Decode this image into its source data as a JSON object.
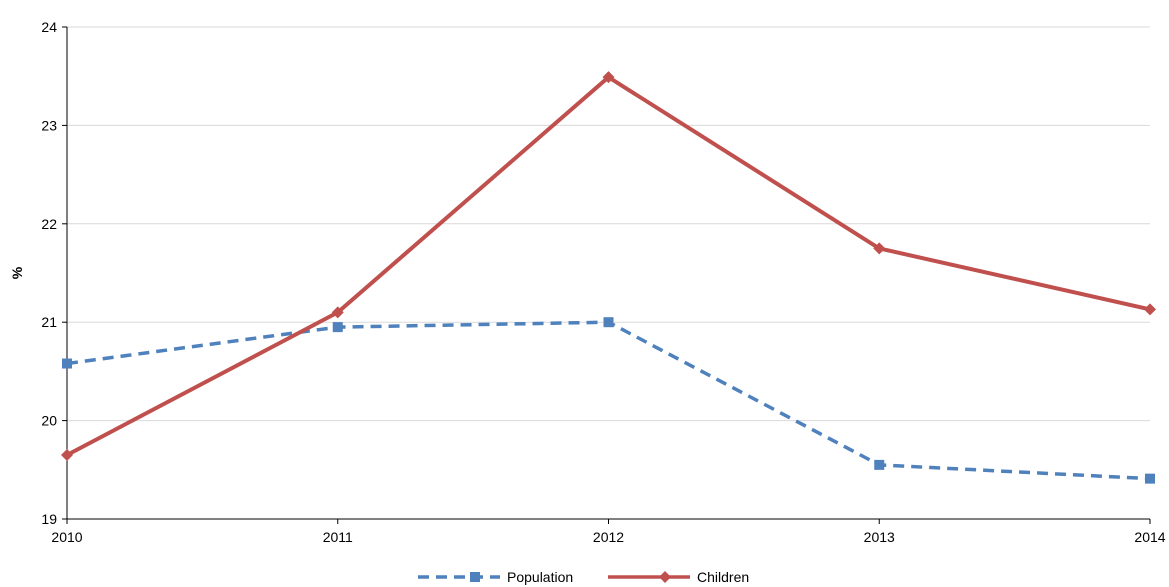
{
  "chart_data": {
    "type": "line",
    "title": "",
    "xlabel": "",
    "ylabel": "%",
    "categories": [
      "2010",
      "2011",
      "2012",
      "2013",
      "2014"
    ],
    "ylim": [
      19,
      24
    ],
    "yticks": [
      "19",
      "20",
      "21",
      "22",
      "23",
      "24"
    ],
    "grid": "horizontal",
    "legend_position": "bottom",
    "series": [
      {
        "name": "Population",
        "values": [
          20.58,
          20.95,
          21.0,
          19.55,
          19.41
        ],
        "color": "#4F81BD",
        "line_style": "dashed",
        "marker": "square"
      },
      {
        "name": "Children",
        "values": [
          19.65,
          21.1,
          23.49,
          21.75,
          21.13
        ],
        "color": "#C0504D",
        "line_style": "solid",
        "marker": "diamond"
      }
    ]
  }
}
